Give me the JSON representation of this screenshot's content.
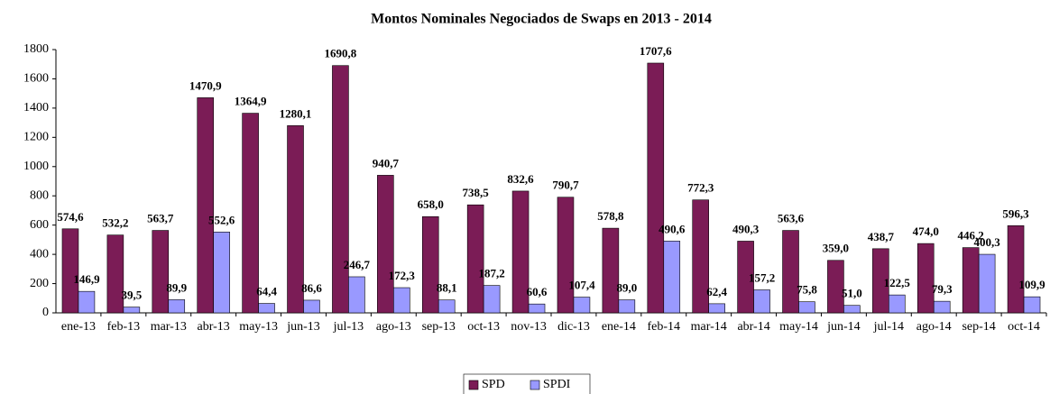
{
  "chart_data": {
    "type": "bar",
    "title": "Montos Nominales Negociados de Swaps en 2013 - 2014",
    "categories": [
      "ene-13",
      "feb-13",
      "mar-13",
      "abr-13",
      "may-13",
      "jun-13",
      "jul-13",
      "ago-13",
      "sep-13",
      "oct-13",
      "nov-13",
      "dic-13",
      "ene-14",
      "feb-14",
      "mar-14",
      "abr-14",
      "may-14",
      "jun-14",
      "jul-14",
      "ago-14",
      "sep-14",
      "oct-14"
    ],
    "series": [
      {
        "name": "SPD",
        "color": "#7b1c56",
        "values": [
          574.6,
          532.2,
          563.7,
          1470.9,
          1364.9,
          1280.1,
          1690.8,
          940.7,
          658.0,
          738.5,
          832.6,
          790.7,
          578.8,
          1707.6,
          772.3,
          490.3,
          563.6,
          359.0,
          438.7,
          474.0,
          446.2,
          596.3
        ],
        "value_labels": [
          "574,6",
          "532,2",
          "563,7",
          "1470,9",
          "1364,9",
          "1280,1",
          "1690,8",
          "940,7",
          "658,0",
          "738,5",
          "832,6",
          "790,7",
          "578,8",
          "1707,6",
          "772,3",
          "490,3",
          "563,6",
          "359,0",
          "438,7",
          "474,0",
          "446,2",
          "596,3"
        ]
      },
      {
        "name": "SPDI",
        "color": "#9999ff",
        "values": [
          146.9,
          39.5,
          89.9,
          552.6,
          64.4,
          86.6,
          246.7,
          172.3,
          88.1,
          187.2,
          60.6,
          107.4,
          89.0,
          490.6,
          62.4,
          157.2,
          75.8,
          51.0,
          122.5,
          79.3,
          400.3,
          109.9
        ],
        "value_labels": [
          "146,9",
          "39,5",
          "89,9",
          "552,6",
          "64,4",
          "86,6",
          "246,7",
          "172,3",
          "88,1",
          "187,2",
          "60,6",
          "107,4",
          "89,0",
          "490,6",
          "62,4",
          "157,2",
          "75,8",
          "51,0",
          "122,5",
          "79,3",
          "400,3",
          "109,9"
        ]
      }
    ],
    "ylim": [
      0,
      1800
    ],
    "yticks": [
      0,
      200,
      400,
      600,
      800,
      1000,
      1200,
      1400,
      1600,
      1800
    ],
    "grid": false,
    "legend": "bottom"
  }
}
